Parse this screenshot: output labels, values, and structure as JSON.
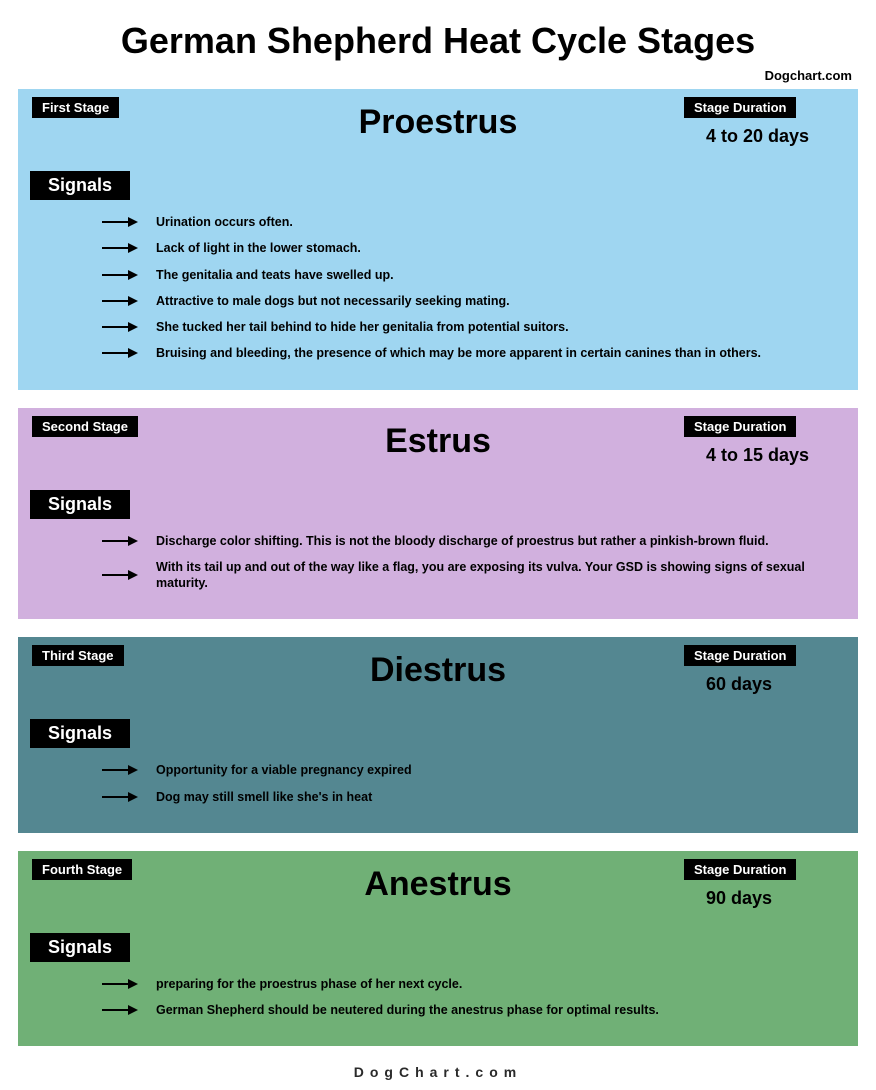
{
  "title": "German Shepherd Heat Cycle Stages",
  "attribution": "Dogchart.com",
  "footer": "DogChart.com",
  "labels": {
    "signals": "Signals",
    "duration": "Stage Duration"
  },
  "colors": {
    "background": "#ffffff",
    "badge_bg": "#000000",
    "badge_text": "#ffffff",
    "text": "#000000"
  },
  "stages": [
    {
      "order_label": "First Stage",
      "name": "Proestrus",
      "duration": "4 to 20 days",
      "bg_color": "#9fd6f1",
      "signals": [
        "Urination occurs often.",
        "Lack of light in the lower stomach.",
        "The genitalia and teats have swelled up.",
        "Attractive to male dogs but not necessarily seeking mating.",
        "She tucked her tail behind to hide her genitalia from potential suitors.",
        "Bruising and bleeding, the presence of which may be more apparent in certain canines than in others."
      ]
    },
    {
      "order_label": "Second Stage",
      "name": "Estrus",
      "duration": "4 to 15 days",
      "bg_color": "#d1b0de",
      "signals": [
        "Discharge color shifting. This is not the bloody discharge of proestrus but rather a pinkish-brown fluid.",
        "With its tail up and out of the way like a flag, you are exposing its vulva. Your GSD is showing signs of sexual maturity."
      ]
    },
    {
      "order_label": "Third Stage",
      "name": "Diestrus",
      "duration": "60 days",
      "bg_color": "#548791",
      "signals": [
        "Opportunity for a viable pregnancy expired",
        "Dog may still smell like she's in heat"
      ]
    },
    {
      "order_label": "Fourth Stage",
      "name": "Anestrus",
      "duration": "90 days",
      "bg_color": "#70b076",
      "signals": [
        "preparing for the proestrus phase of her next cycle.",
        "German Shepherd should be neutered during the anestrus phase for optimal results."
      ]
    }
  ]
}
